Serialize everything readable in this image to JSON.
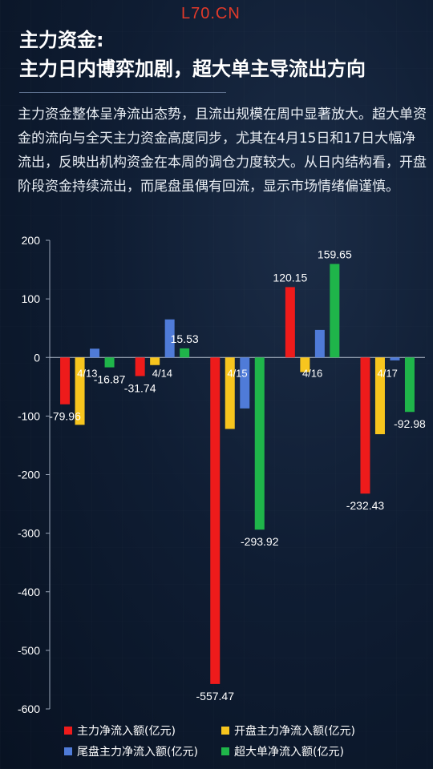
{
  "watermark": "L70.CN",
  "title_line1": "主力资金:",
  "title_line2": "主力日内博弈加剧，超大单主导流出方向",
  "paragraph": "主力资金整体呈净流出态势，且流出规模在周中显著放大。超大单资金的流向与全天主力资金高度同步，尤其在4月15日和17日大幅净流出，反映出机构资金在本周的调仓力度较大。从日内结构看，开盘阶段资金持续流出，而尾盘虽偶有回流，显示市场情绪偏谨慎。",
  "colors": {
    "main": "#ee1b1b",
    "open": "#f7c51e",
    "tail": "#4f7bd8",
    "super": "#1fb54a"
  },
  "chart_data": {
    "type": "bar",
    "categories": [
      "4/13",
      "4/14",
      "4/15",
      "4/16",
      "4/17"
    ],
    "ylim": [
      -600,
      200
    ],
    "yticks": [
      200,
      100,
      0,
      -100,
      -200,
      -300,
      -400,
      -500,
      -600
    ],
    "series": [
      {
        "name": "主力净流入额(亿元)",
        "values": [
          -79.96,
          -31.74,
          -557.47,
          120.15,
          -232.43
        ]
      },
      {
        "name": "开盘主力净流入额(亿元)",
        "values": [
          -115,
          -13,
          -122,
          -25,
          -131
        ]
      },
      {
        "name": "尾盘主力净流入额(亿元)",
        "values": [
          15,
          65,
          -87,
          47,
          -5
        ]
      },
      {
        "name": "超大单净流入额(亿元)",
        "values": [
          -16.87,
          15.53,
          -293.92,
          159.65,
          -92.98
        ]
      }
    ],
    "data_labels": [
      {
        "text": "-79.96"
      },
      {
        "text": "-16.87"
      },
      {
        "text": "-31.74"
      },
      {
        "text": "15.53"
      },
      {
        "text": "-557.47"
      },
      {
        "text": "-293.92"
      },
      {
        "text": "120.15"
      },
      {
        "text": "159.65"
      },
      {
        "text": "-232.43"
      },
      {
        "text": "-92.98"
      }
    ]
  }
}
